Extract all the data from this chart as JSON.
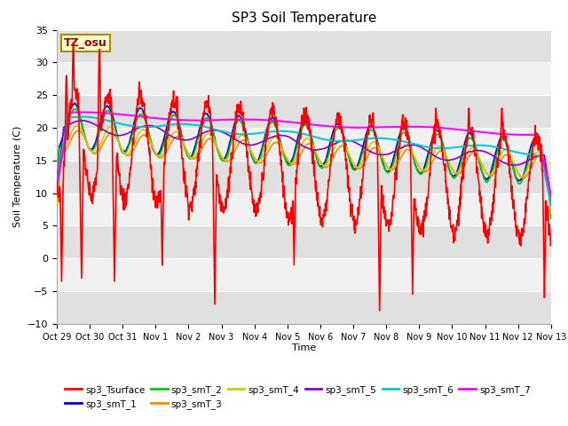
{
  "title": "SP3 Soil Temperature",
  "xlabel": "Time",
  "ylabel": "Soil Temperature (C)",
  "ylim": [
    -10,
    35
  ],
  "annotation": "TZ_osu",
  "series_colors": {
    "sp3_Tsurface": "#ff0000",
    "sp3_smT_1": "#0000cc",
    "sp3_smT_2": "#00cc00",
    "sp3_smT_3": "#ff8800",
    "sp3_smT_4": "#cccc00",
    "sp3_smT_5": "#8800cc",
    "sp3_smT_6": "#00cccc",
    "sp3_smT_7": "#ff00ff"
  },
  "xtick_labels": [
    "Oct 29",
    "Oct 30",
    "Oct 31",
    "Nov 1",
    "Nov 2",
    "Nov 3",
    "Nov 4",
    "Nov 5",
    "Nov 6",
    "Nov 7",
    "Nov 8",
    "Nov 9",
    "Nov 10",
    "Nov 11",
    "Nov 12",
    "Nov 13"
  ],
  "ytick_vals": [
    -10,
    -5,
    0,
    5,
    10,
    15,
    20,
    25,
    30,
    35
  ],
  "n_points": 1440,
  "plot_bg_color": "#ffffff",
  "band_color": "#e0e0e0"
}
